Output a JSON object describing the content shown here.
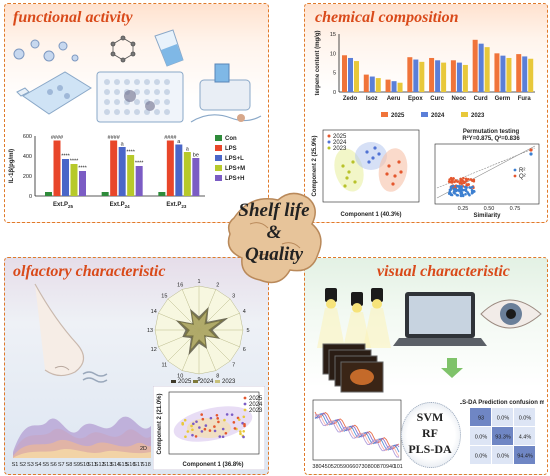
{
  "panels": {
    "functional": {
      "title": "functional activity"
    },
    "chemical": {
      "title": "chemical composition"
    },
    "olfactory": {
      "title": "olfactory characteristic"
    },
    "visual": {
      "title": "visual characteristic"
    }
  },
  "center": {
    "line1": "Shelf life",
    "line2": "&",
    "line3": "Quality"
  },
  "colors": {
    "accent": "#d94a1a",
    "border": "#e07a2a",
    "con": "#2e8b3a",
    "lps": "#e8462a",
    "lpsl": "#4a66c8",
    "lpsm": "#b7c92a",
    "lpsh": "#7b5cc4"
  },
  "chart_data": [
    {
      "type": "bar",
      "ylabel": "IL-1β(pg/ml)",
      "categories": [
        "Ext.P25",
        "Ext.P24",
        "Ext.P23"
      ],
      "category_labels": [
        [
          "Ext.P",
          "25"
        ],
        [
          "Ext.P",
          "24"
        ],
        [
          "Ext.P",
          "23"
        ]
      ],
      "series": [
        {
          "name": "Con",
          "values": [
            40,
            40,
            40
          ]
        },
        {
          "name": "LPS",
          "values": [
            555,
            555,
            555
          ]
        },
        {
          "name": "LPS+L",
          "values": [
            370,
            490,
            515
          ]
        },
        {
          "name": "LPS+M",
          "values": [
            320,
            410,
            440
          ]
        },
        {
          "name": "LPS+H",
          "values": [
            250,
            300,
            380
          ]
        }
      ],
      "ylim": [
        0,
        600
      ],
      "yticks": [
        0,
        200,
        400,
        600
      ],
      "annotations": [
        "####",
        "****",
        "****",
        "****",
        "####",
        "a",
        "****",
        "****",
        "####",
        "a",
        "a",
        "be",
        "****"
      ]
    },
    {
      "type": "bar",
      "ylabel": "terpene content (mg/g)",
      "categories": [
        "Zedo",
        "Isoz",
        "Aeru",
        "Epox",
        "Curc",
        "Neoc",
        "Curd",
        "Germ",
        "Fura"
      ],
      "series": [
        {
          "name": "2025",
          "values": [
            9.5,
            4.5,
            3.2,
            9.0,
            8.8,
            8.2,
            13.5,
            10.0,
            9.8
          ]
        },
        {
          "name": "2024",
          "values": [
            8.8,
            4.0,
            2.8,
            8.4,
            8.2,
            7.6,
            12.5,
            9.4,
            9.2
          ]
        },
        {
          "name": "2023",
          "values": [
            8.0,
            3.6,
            2.4,
            7.8,
            7.6,
            7.0,
            11.6,
            8.8,
            8.6
          ]
        }
      ],
      "ylim": [
        0,
        15
      ],
      "yticks": [
        0,
        5,
        10,
        15
      ]
    },
    {
      "type": "scatter",
      "xlabel": "Component 1 (40.3%)",
      "ylabel": "Component 2 (25.9%)",
      "legend": [
        "2025",
        "2024",
        "2023"
      ]
    },
    {
      "type": "scatter",
      "title": "Permutation testing",
      "subtitle": "R²Y=0.875, Q²=0.836",
      "xlabel": "Similarity",
      "legend": [
        "R²",
        "Q²"
      ],
      "xticks": [
        "0.25",
        "0.50",
        "0.75"
      ]
    },
    {
      "type": "radar",
      "axes": [
        "1",
        "2",
        "3",
        "4",
        "5",
        "6",
        "7",
        "8",
        "9",
        "10",
        "11",
        "12",
        "13",
        "14",
        "15",
        "16"
      ],
      "legend": [
        "2025",
        "2024",
        "2023"
      ]
    },
    {
      "type": "scatter",
      "xlabel": "Component 1 (36.8%)",
      "ylabel": "Component 2 (21.0%)",
      "legend": [
        "2025",
        "2024",
        "2023"
      ]
    },
    {
      "type": "area",
      "xticks": [
        "S1",
        "S2",
        "S3",
        "S4",
        "S5",
        "S6",
        "S7",
        "S8",
        "S9",
        "S10",
        "S11",
        "S12",
        "S13",
        "S14",
        "S15",
        "S16",
        "S17",
        "S18"
      ],
      "zlabel": "2D"
    },
    {
      "type": "line",
      "xticks": [
        "380",
        "450",
        "520",
        "590",
        "660",
        "730",
        "800",
        "870",
        "940",
        "1010"
      ]
    },
    {
      "type": "heatmap",
      "title": "PLS-DA Prediction confusion matrix",
      "cells": [
        [
          "93",
          "0.0%",
          "0.0%"
        ],
        [
          "0.0%",
          "93.3%",
          "4.4%"
        ],
        [
          "0.0%",
          "0.0%",
          "94.4%"
        ]
      ]
    }
  ],
  "models": [
    "SVM",
    "RF",
    "PLS-DA"
  ]
}
